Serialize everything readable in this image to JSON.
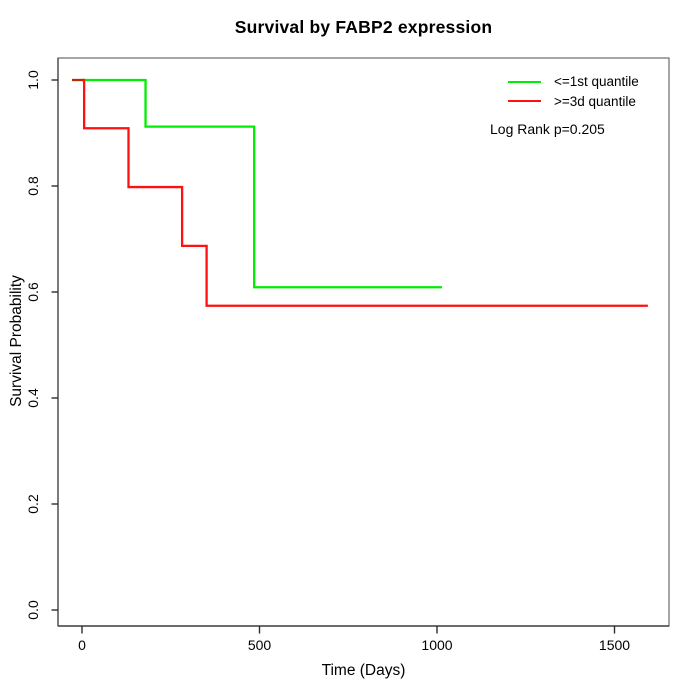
{
  "title": "Survival by FABP2 expression",
  "axes": {
    "x_label": "Time (Days)",
    "y_label": "Survival Probability"
  },
  "legend": {
    "items": [
      {
        "label": "<=1st quantile",
        "color": "#00ee00"
      },
      {
        "label": ">=3d quantile",
        "color": "#ff1111"
      }
    ],
    "note": "Log Rank p=0.205"
  },
  "chart_data": {
    "type": "line",
    "subtype": "kaplan-meier-step",
    "title": "Survival by FABP2 expression",
    "xlabel": "Time (Days)",
    "ylabel": "Survival Probability",
    "xlim": [
      -65,
      1660
    ],
    "ylim": [
      0.0,
      1.0
    ],
    "x_ticks": [
      0,
      500,
      1000,
      1500
    ],
    "y_ticks": [
      0.0,
      0.2,
      0.4,
      0.6,
      0.8,
      1.0
    ],
    "grid": false,
    "legend_position": "top-right",
    "annotation": "Log Rank p=0.205",
    "series": [
      {
        "name": "<=1st quantile",
        "color": "#00ee00",
        "steps": [
          [
            0,
            1.0
          ],
          [
            179,
            0.912
          ],
          [
            485,
            0.609
          ]
        ],
        "end_t": 1014
      },
      {
        "name": ">=3d quantile",
        "color": "#ff1111",
        "steps": [
          [
            0,
            1.0
          ],
          [
            6,
            0.909
          ],
          [
            131,
            0.798
          ],
          [
            282,
            0.687
          ],
          [
            351,
            0.574
          ]
        ],
        "end_t": 1594
      }
    ],
    "origin_mark_color": "#b03000"
  }
}
